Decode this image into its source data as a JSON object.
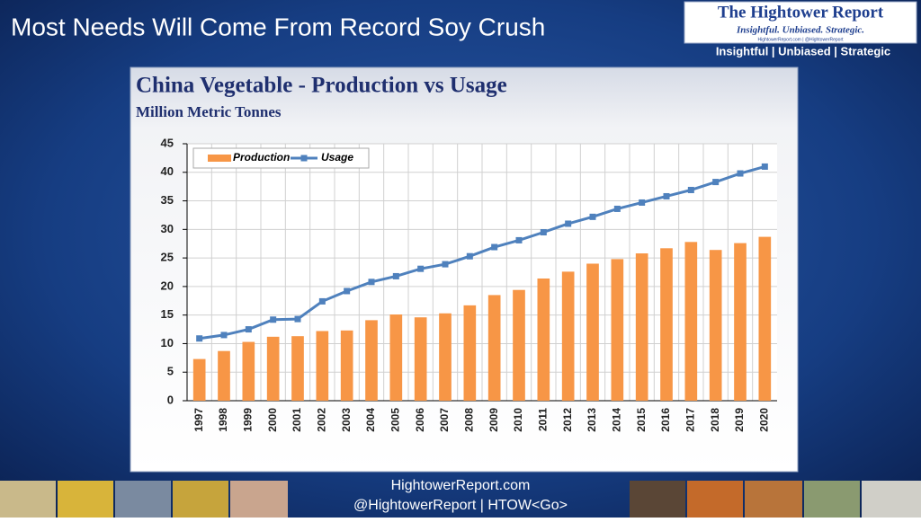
{
  "slide": {
    "title": "Most Needs Will Come From Record Soy Crush",
    "logo": {
      "name": "The Hightower Report",
      "motto": "Insightful. Unbiased. Strategic.",
      "small": "HightowerReport.com | @HightowerReport",
      "tagline": "Insightful | Unbiased | Strategic"
    },
    "footer": {
      "site": "HightowerReport.com",
      "handle": "@HightowerReport | HTOW<Go>"
    }
  },
  "chart_data": {
    "type": "bar_line",
    "title": "China Vegetable - Production vs Usage",
    "subtitle": "Million Metric Tonnes",
    "categories": [
      "1997",
      "1998",
      "1999",
      "2000",
      "2001",
      "2002",
      "2003",
      "2004",
      "2005",
      "2006",
      "2007",
      "2008",
      "2009",
      "2010",
      "2011",
      "2012",
      "2013",
      "2014",
      "2015",
      "2016",
      "2017",
      "2018",
      "2019",
      "2020"
    ],
    "series": [
      {
        "name": "Production",
        "kind": "bar",
        "color": "#f79646",
        "values": [
          7.3,
          8.7,
          10.3,
          11.2,
          11.3,
          12.2,
          12.3,
          14.1,
          15.1,
          14.6,
          15.3,
          16.7,
          18.5,
          19.4,
          21.4,
          22.6,
          24.0,
          24.8,
          25.8,
          26.7,
          27.8,
          26.4,
          27.6,
          28.7
        ]
      },
      {
        "name": "Usage",
        "kind": "line",
        "color": "#4f81bd",
        "values": [
          10.9,
          11.5,
          12.5,
          14.2,
          14.3,
          17.4,
          19.2,
          20.8,
          21.8,
          23.1,
          23.9,
          25.3,
          26.9,
          28.1,
          29.5,
          31.0,
          32.2,
          33.6,
          34.7,
          35.8,
          36.9,
          38.3,
          39.8,
          41.0
        ]
      }
    ],
    "ylim": [
      0,
      45
    ],
    "yticks": [
      0,
      5,
      10,
      15,
      20,
      25,
      30,
      35,
      40,
      45
    ],
    "grid": true,
    "legend": "upper left"
  }
}
